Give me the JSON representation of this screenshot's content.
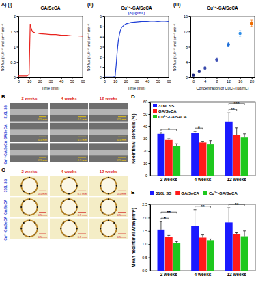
{
  "chart_data": [
    {
      "type": "line",
      "panel": "A) (i)",
      "title": "GA/SeCA",
      "xlabel": "Time (min)",
      "ylabel": "NO flux (×10⁻¹⁰ mol cm⁻² min⁻¹)",
      "x": [
        0,
        2,
        4,
        6,
        8,
        10,
        11,
        12,
        13,
        14,
        16,
        18,
        20,
        25,
        30,
        35,
        40,
        45,
        50,
        55,
        60
      ],
      "series": [
        {
          "color": "#e8231e",
          "values": [
            0.05,
            0.05,
            0.05,
            0.05,
            0.05,
            0.1,
            1.75,
            1.6,
            1.5,
            1.48,
            1.45,
            1.45,
            1.43,
            1.42,
            1.4,
            1.4,
            1.38,
            1.38,
            1.36,
            1.36,
            1.35
          ]
        }
      ],
      "xlim": [
        0,
        60
      ],
      "xticks": [
        0,
        10,
        20,
        30,
        40,
        50,
        60
      ],
      "ylim": [
        0,
        2
      ],
      "yticks": [
        0,
        0.5,
        1,
        1.5,
        2
      ]
    },
    {
      "type": "line",
      "panel": "(ii)",
      "title": "Cu²⁺-GA/SeCA",
      "annotation": "(8 μg/mL)",
      "xlabel": "Time (min)",
      "ylabel": "NO flux (×10⁻¹⁰ mol cm⁻² min⁻¹)",
      "x": [
        0,
        2,
        4,
        6,
        8,
        10,
        11,
        12,
        13,
        14,
        15,
        16,
        18,
        20,
        25,
        30,
        35,
        40,
        45,
        50,
        55,
        60
      ],
      "series": [
        {
          "color": "#1f3fd6",
          "values": [
            0.05,
            0.05,
            0.05,
            0.05,
            0.05,
            0.1,
            1.2,
            2.6,
            3.6,
            4.2,
            4.6,
            4.9,
            5.1,
            5.25,
            5.4,
            5.45,
            5.5,
            5.5,
            5.55,
            5.5,
            5.55,
            5.5
          ]
        }
      ],
      "xlim": [
        0,
        60
      ],
      "xticks": [
        0,
        10,
        20,
        30,
        40,
        50,
        60
      ],
      "ylim": [
        0,
        6
      ],
      "yticks": [
        0,
        1,
        2,
        3,
        4,
        5,
        6
      ]
    },
    {
      "type": "scatter",
      "panel": "(iii)",
      "title": "Cu²⁺-GA/SeCA",
      "xlabel": "Concentration of CuCl₂ (μg/mL)",
      "ylabel": "NO flux (×10⁻¹⁰ mol cm⁻² min⁻¹)",
      "x": [
        0,
        2,
        4,
        8,
        12,
        16,
        20
      ],
      "values": [
        0.6,
        1.5,
        2.4,
        4.6,
        8.6,
        11.5,
        14.2
      ],
      "errors": [
        0.2,
        0.3,
        0.3,
        0.4,
        0.6,
        0.7,
        0.9
      ],
      "colors": [
        "#1a237e",
        "#283593",
        "#3949ab",
        "#3f51b5",
        "#1e6fd9",
        "#2f8fe8",
        "#ef6c00"
      ],
      "marker": "circle",
      "xlim": [
        -1,
        21
      ],
      "xticks": [
        0,
        4,
        8,
        12,
        16,
        20
      ],
      "ylim": [
        0,
        16
      ],
      "yticks": [
        0,
        4,
        8,
        12,
        16
      ]
    },
    {
      "type": "image_grid",
      "panel": "B",
      "columns": [
        "2 weeks",
        "4 weeks",
        "12 weeks"
      ],
      "rows": [
        "316L SS",
        "GA/SeCA",
        "Cu²⁺-GA/SeCA"
      ],
      "color": "#e0301e",
      "colors": [
        "#2b3fd1",
        "#2b3fd1",
        "#2b3fd1"
      ],
      "scale_bar": "0.5 mm"
    },
    {
      "type": "image_grid",
      "panel": "C",
      "columns": [
        "2 weeks",
        "4 weeks",
        "12 weeks"
      ],
      "rows": [
        "316L SS",
        "GA/SeCA",
        "Cu²⁺-GA/SeCA"
      ],
      "color": "#e0301e",
      "colors": [
        "#2b3fd1",
        "#2b3fd1",
        "#2b3fd1"
      ],
      "scale_bar": "0.5 mm"
    },
    {
      "type": "bar",
      "panel": "D",
      "ylabel": "Neointimal stenosis (%)",
      "categories": [
        "2 weeks",
        "4 weeks",
        "12 weeks"
      ],
      "series": [
        {
          "name": "316L SS",
          "color": "#1a1aff",
          "values": [
            34,
            34.5,
            44
          ],
          "errors": [
            1,
            1.5,
            7
          ]
        },
        {
          "name": "GA/SeCA",
          "color": "#ff1a1a",
          "values": [
            29,
            27,
            33
          ],
          "errors": [
            1,
            1,
            6
          ]
        },
        {
          "name": "Cu²⁺-GA/SeCA",
          "color": "#1ec81e",
          "values": [
            24,
            25.5,
            31
          ],
          "errors": [
            2,
            3,
            3
          ]
        }
      ],
      "ylim": [
        0,
        60
      ],
      "yticks": [
        0,
        10,
        20,
        30,
        40,
        50,
        60
      ],
      "legend": "top left",
      "annotations": [
        {
          "text": "*",
          "category": 0,
          "bars": [
            0,
            2
          ]
        },
        {
          "text": "*",
          "category": 1,
          "bars": [
            0,
            1
          ]
        },
        {
          "text": "**",
          "category": 2,
          "bars": [
            0,
            1
          ]
        },
        {
          "text": "***",
          "category": 2,
          "bars": [
            0,
            2
          ]
        }
      ]
    },
    {
      "type": "bar",
      "panel": "E",
      "ylabel": "Mean neointimal Area (mm²)",
      "categories": [
        "2 weeks",
        "4 weeks",
        "12 weeks"
      ],
      "series": [
        {
          "name": "316L SS",
          "color": "#1a1aff",
          "values": [
            1.55,
            1.7,
            1.82
          ],
          "errors": [
            0.3,
            0.6,
            0.55
          ]
        },
        {
          "name": "GA/SeCA",
          "color": "#ff1a1a",
          "values": [
            1.28,
            1.25,
            1.38
          ],
          "errors": [
            0.05,
            0.1,
            0.05
          ]
        },
        {
          "name": "Cu²⁺-GA/SeCA",
          "color": "#1ec81e",
          "values": [
            1.05,
            1.15,
            1.3
          ],
          "errors": [
            0.05,
            0.05,
            0.2
          ]
        }
      ],
      "ylim": [
        0,
        2.5
      ],
      "yticks": [
        {
          "value": 0,
          "label": "0.0"
        },
        0.5,
        {
          "value": 1,
          "label": "1.0"
        },
        1.5,
        {
          "value": 2,
          "label": "2.0"
        },
        2.5
      ],
      "legend": "top",
      "annotations": [
        {
          "text": "*",
          "category": 0,
          "bars": [
            0,
            1
          ]
        },
        {
          "text": "**",
          "category": 0,
          "bars": [
            0,
            2
          ]
        },
        {
          "text": "**",
          "category": 1,
          "bars": [
            0,
            2
          ]
        },
        {
          "text": "**",
          "category": 2,
          "bars": [
            0,
            2
          ]
        }
      ]
    }
  ]
}
